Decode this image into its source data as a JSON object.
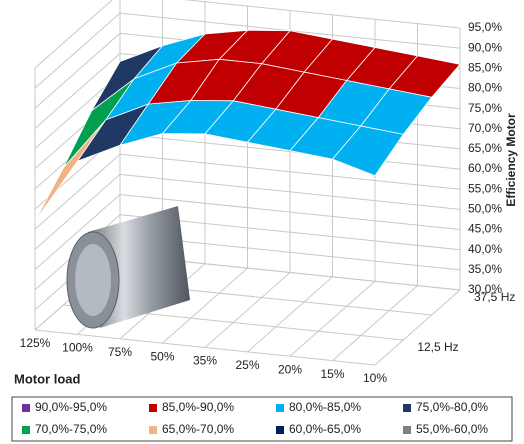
{
  "chart_data": {
    "type": "surface",
    "x_title": "Motor load",
    "z_title": "Efficiency Motor",
    "x_categories": [
      "125%",
      "100%",
      "75%",
      "50%",
      "35%",
      "25%",
      "20%",
      "15%",
      "10%"
    ],
    "depth_categories": [
      null,
      "12,5 Hz",
      null,
      "37,5 Hz"
    ],
    "z_values": [
      [
        57,
        73,
        78,
        82,
        83,
        82,
        81,
        80,
        77
      ],
      [
        64,
        77,
        82,
        84,
        85,
        84,
        83,
        82,
        81
      ],
      [
        72,
        81,
        86,
        88,
        88,
        87,
        86,
        85,
        84
      ],
      [
        78,
        83,
        87,
        89,
        90,
        89,
        88,
        87,
        86
      ]
    ],
    "zlim": [
      30,
      95
    ],
    "zticks": [
      {
        "value": 30,
        "label": "30,0%"
      },
      {
        "value": 35,
        "label": "35,0%"
      },
      {
        "value": 40,
        "label": "40,0%"
      },
      {
        "value": 45,
        "label": "45,0%"
      },
      {
        "value": 50,
        "label": "50,0%"
      },
      {
        "value": 55,
        "label": "55,0%"
      },
      {
        "value": 60,
        "label": "60,0%"
      },
      {
        "value": 65,
        "label": "65,0%"
      },
      {
        "value": 70,
        "label": "70,0%"
      },
      {
        "value": 75,
        "label": "75,0%"
      },
      {
        "value": 80,
        "label": "80,0%"
      },
      {
        "value": 85,
        "label": "85,0%"
      },
      {
        "value": 90,
        "label": "90,0%"
      },
      {
        "value": 95,
        "label": "95,0%"
      }
    ],
    "series": [
      {
        "name": "90,0%-95,0%",
        "color": "#7030a0",
        "range": [
          90,
          95
        ]
      },
      {
        "name": "85,0%-90,0%",
        "color": "#c00000",
        "range": [
          85,
          90
        ]
      },
      {
        "name": "80,0%-85,0%",
        "color": "#00b0f0",
        "range": [
          80,
          85
        ]
      },
      {
        "name": "75,0%-80,0%",
        "color": "#1f3864",
        "range": [
          75,
          80
        ]
      },
      {
        "name": "70,0%-75,0%",
        "color": "#00a050",
        "range": [
          70,
          75
        ]
      },
      {
        "name": "65,0%-70,0%",
        "color": "#f4b183",
        "range": [
          65,
          70
        ]
      },
      {
        "name": "60,0%-65,0%",
        "color": "#002060",
        "range": [
          60,
          65
        ]
      },
      {
        "name": "55,0%-60,0%",
        "color": "#808080",
        "range": [
          55,
          60
        ]
      }
    ]
  }
}
